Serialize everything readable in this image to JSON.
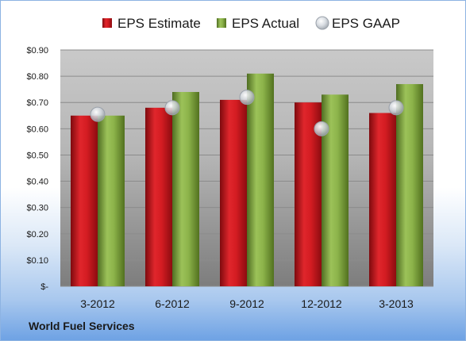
{
  "chart_data": {
    "type": "bar",
    "categories": [
      "3-2012",
      "6-2012",
      "9-2012",
      "12-2012",
      "3-2013"
    ],
    "series": [
      {
        "name": "EPS Estimate",
        "type": "bar",
        "values": [
          0.65,
          0.68,
          0.71,
          0.7,
          0.66
        ],
        "color": "#c0161c"
      },
      {
        "name": "EPS Actual",
        "type": "bar",
        "values": [
          0.65,
          0.74,
          0.81,
          0.73,
          0.77
        ],
        "color": "#7ea140"
      },
      {
        "name": "EPS GAAP",
        "type": "marker",
        "values": [
          0.655,
          0.68,
          0.72,
          0.6,
          0.68
        ],
        "color": "#c8cdd4"
      }
    ],
    "ylim": [
      0,
      0.9
    ],
    "yticks": [
      0,
      0.1,
      0.2,
      0.3,
      0.4,
      0.5,
      0.6,
      0.7,
      0.8,
      0.9
    ],
    "ytick_labels": [
      "$-",
      "$0.10",
      "$0.20",
      "$0.30",
      "$0.40",
      "$0.50",
      "$0.60",
      "$0.70",
      "$0.80",
      "$0.90"
    ],
    "grid": true,
    "legend": "top"
  },
  "footer": {
    "company": "World Fuel Services"
  }
}
